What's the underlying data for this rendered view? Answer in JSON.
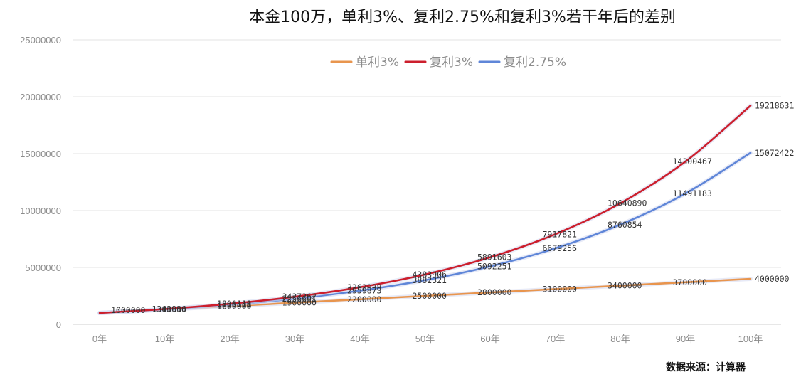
{
  "chart_data": {
    "type": "line",
    "title": "本金100万，单利3%、复利2.75%和复利3%若干年后的差别",
    "xlabel": "",
    "ylabel": "",
    "categories": [
      "0年",
      "10年",
      "20年",
      "30年",
      "40年",
      "50年",
      "60年",
      "70年",
      "80年",
      "90年",
      "100年"
    ],
    "x": [
      0,
      10,
      20,
      30,
      40,
      50,
      60,
      70,
      80,
      90,
      100
    ],
    "ylim": [
      0,
      25000000
    ],
    "yticks": [
      "0",
      "5000000",
      "10000000",
      "15000000",
      "20000000",
      "25000000"
    ],
    "grid": true,
    "legend_position": "top-center",
    "series": [
      {
        "name": "单利3%",
        "color": "#e8954e",
        "values": [
          1000000,
          1300000,
          1600000,
          1900000,
          2200000,
          2500000,
          2800000,
          3100000,
          3400000,
          3700000,
          4000000
        ]
      },
      {
        "name": "复利3%",
        "color": "#cc1f2d",
        "values": [
          1000000,
          1343916,
          1806111,
          2427262,
          3262038,
          4383906,
          5891603,
          7917821,
          10640890,
          14300467,
          19218631
        ]
      },
      {
        "name": "复利2.75%",
        "color": "#5f86d8",
        "values": [
          1000000,
          1311651,
          1720428,
          2256601,
          2959873,
          3882321,
          5092251,
          6679256,
          8760854,
          11491183,
          15072422
        ]
      }
    ],
    "data_labels": [
      {
        "text": "1000000",
        "x": 0,
        "y": 1000000
      },
      {
        "text": "1311651",
        "x": 10,
        "y": 1311651
      },
      {
        "text": "1300000",
        "x": 10,
        "y": 1300000
      },
      {
        "text": "1343916",
        "x": 10,
        "y": 1343916
      },
      {
        "text": "1806111",
        "x": 20,
        "y": 1806111
      },
      {
        "text": "1720428",
        "x": 20,
        "y": 1720428
      },
      {
        "text": "1600000",
        "x": 20,
        "y": 1600000
      },
      {
        "text": "2427262",
        "x": 30,
        "y": 2427262
      },
      {
        "text": "2256601",
        "x": 30,
        "y": 2256601
      },
      {
        "text": "1900000",
        "x": 30,
        "y": 1900000
      },
      {
        "text": "3262038",
        "x": 40,
        "y": 3262038
      },
      {
        "text": "2959873",
        "x": 40,
        "y": 2959873
      },
      {
        "text": "2200000",
        "x": 40,
        "y": 2200000
      },
      {
        "text": "4383906",
        "x": 50,
        "y": 4383906
      },
      {
        "text": "3882321",
        "x": 50,
        "y": 3882321
      },
      {
        "text": "2500000",
        "x": 50,
        "y": 2500000
      },
      {
        "text": "5891603",
        "x": 60,
        "y": 5891603
      },
      {
        "text": "5092251",
        "x": 60,
        "y": 5092251
      },
      {
        "text": "2800000",
        "x": 60,
        "y": 2800000
      },
      {
        "text": "7917821",
        "x": 70,
        "y": 7917821
      },
      {
        "text": "6679256",
        "x": 70,
        "y": 6679256
      },
      {
        "text": "3100000",
        "x": 70,
        "y": 3100000
      },
      {
        "text": "10640890",
        "x": 80,
        "y": 10640890
      },
      {
        "text": "8760854",
        "x": 80,
        "y": 8760854
      },
      {
        "text": "3400000",
        "x": 80,
        "y": 3400000
      },
      {
        "text": "14300467",
        "x": 90,
        "y": 14300467
      },
      {
        "text": "11491183",
        "x": 90,
        "y": 11491183
      },
      {
        "text": "3700000",
        "x": 90,
        "y": 3700000
      },
      {
        "text": "19218631",
        "x": 100,
        "y": 19218631
      },
      {
        "text": "15072422",
        "x": 100,
        "y": 15072422
      },
      {
        "text": "4000000",
        "x": 100,
        "y": 4000000
      }
    ],
    "source": "数据来源：计算器"
  }
}
